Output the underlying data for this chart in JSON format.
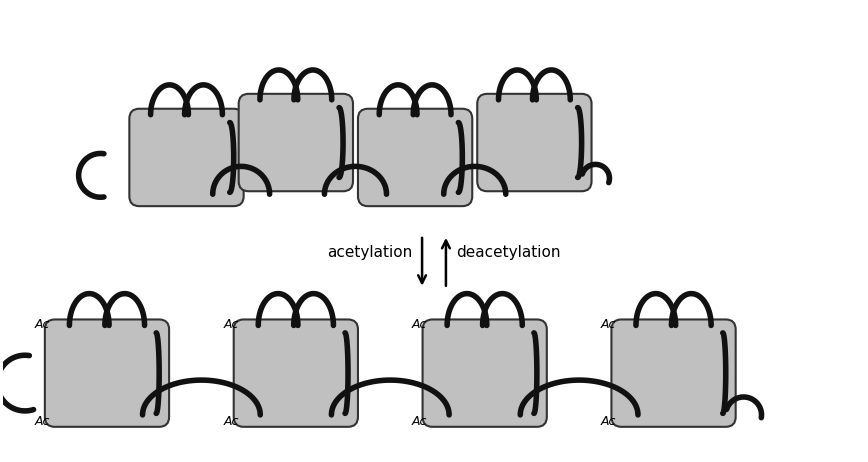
{
  "background_color": "#ffffff",
  "histone_color": "#c0c0c0",
  "histone_edge_color": "#333333",
  "dna_color": "#111111",
  "dna_linewidth": 4.0,
  "histone_lw": 1.5,
  "arrow_color": "#000000",
  "text_color": "#000000",
  "acetylation_label": "acetylation",
  "deacetylation_label": "deacetylation",
  "ac_label": "Ac",
  "figsize": [
    8.68,
    4.62
  ],
  "dpi": 100
}
